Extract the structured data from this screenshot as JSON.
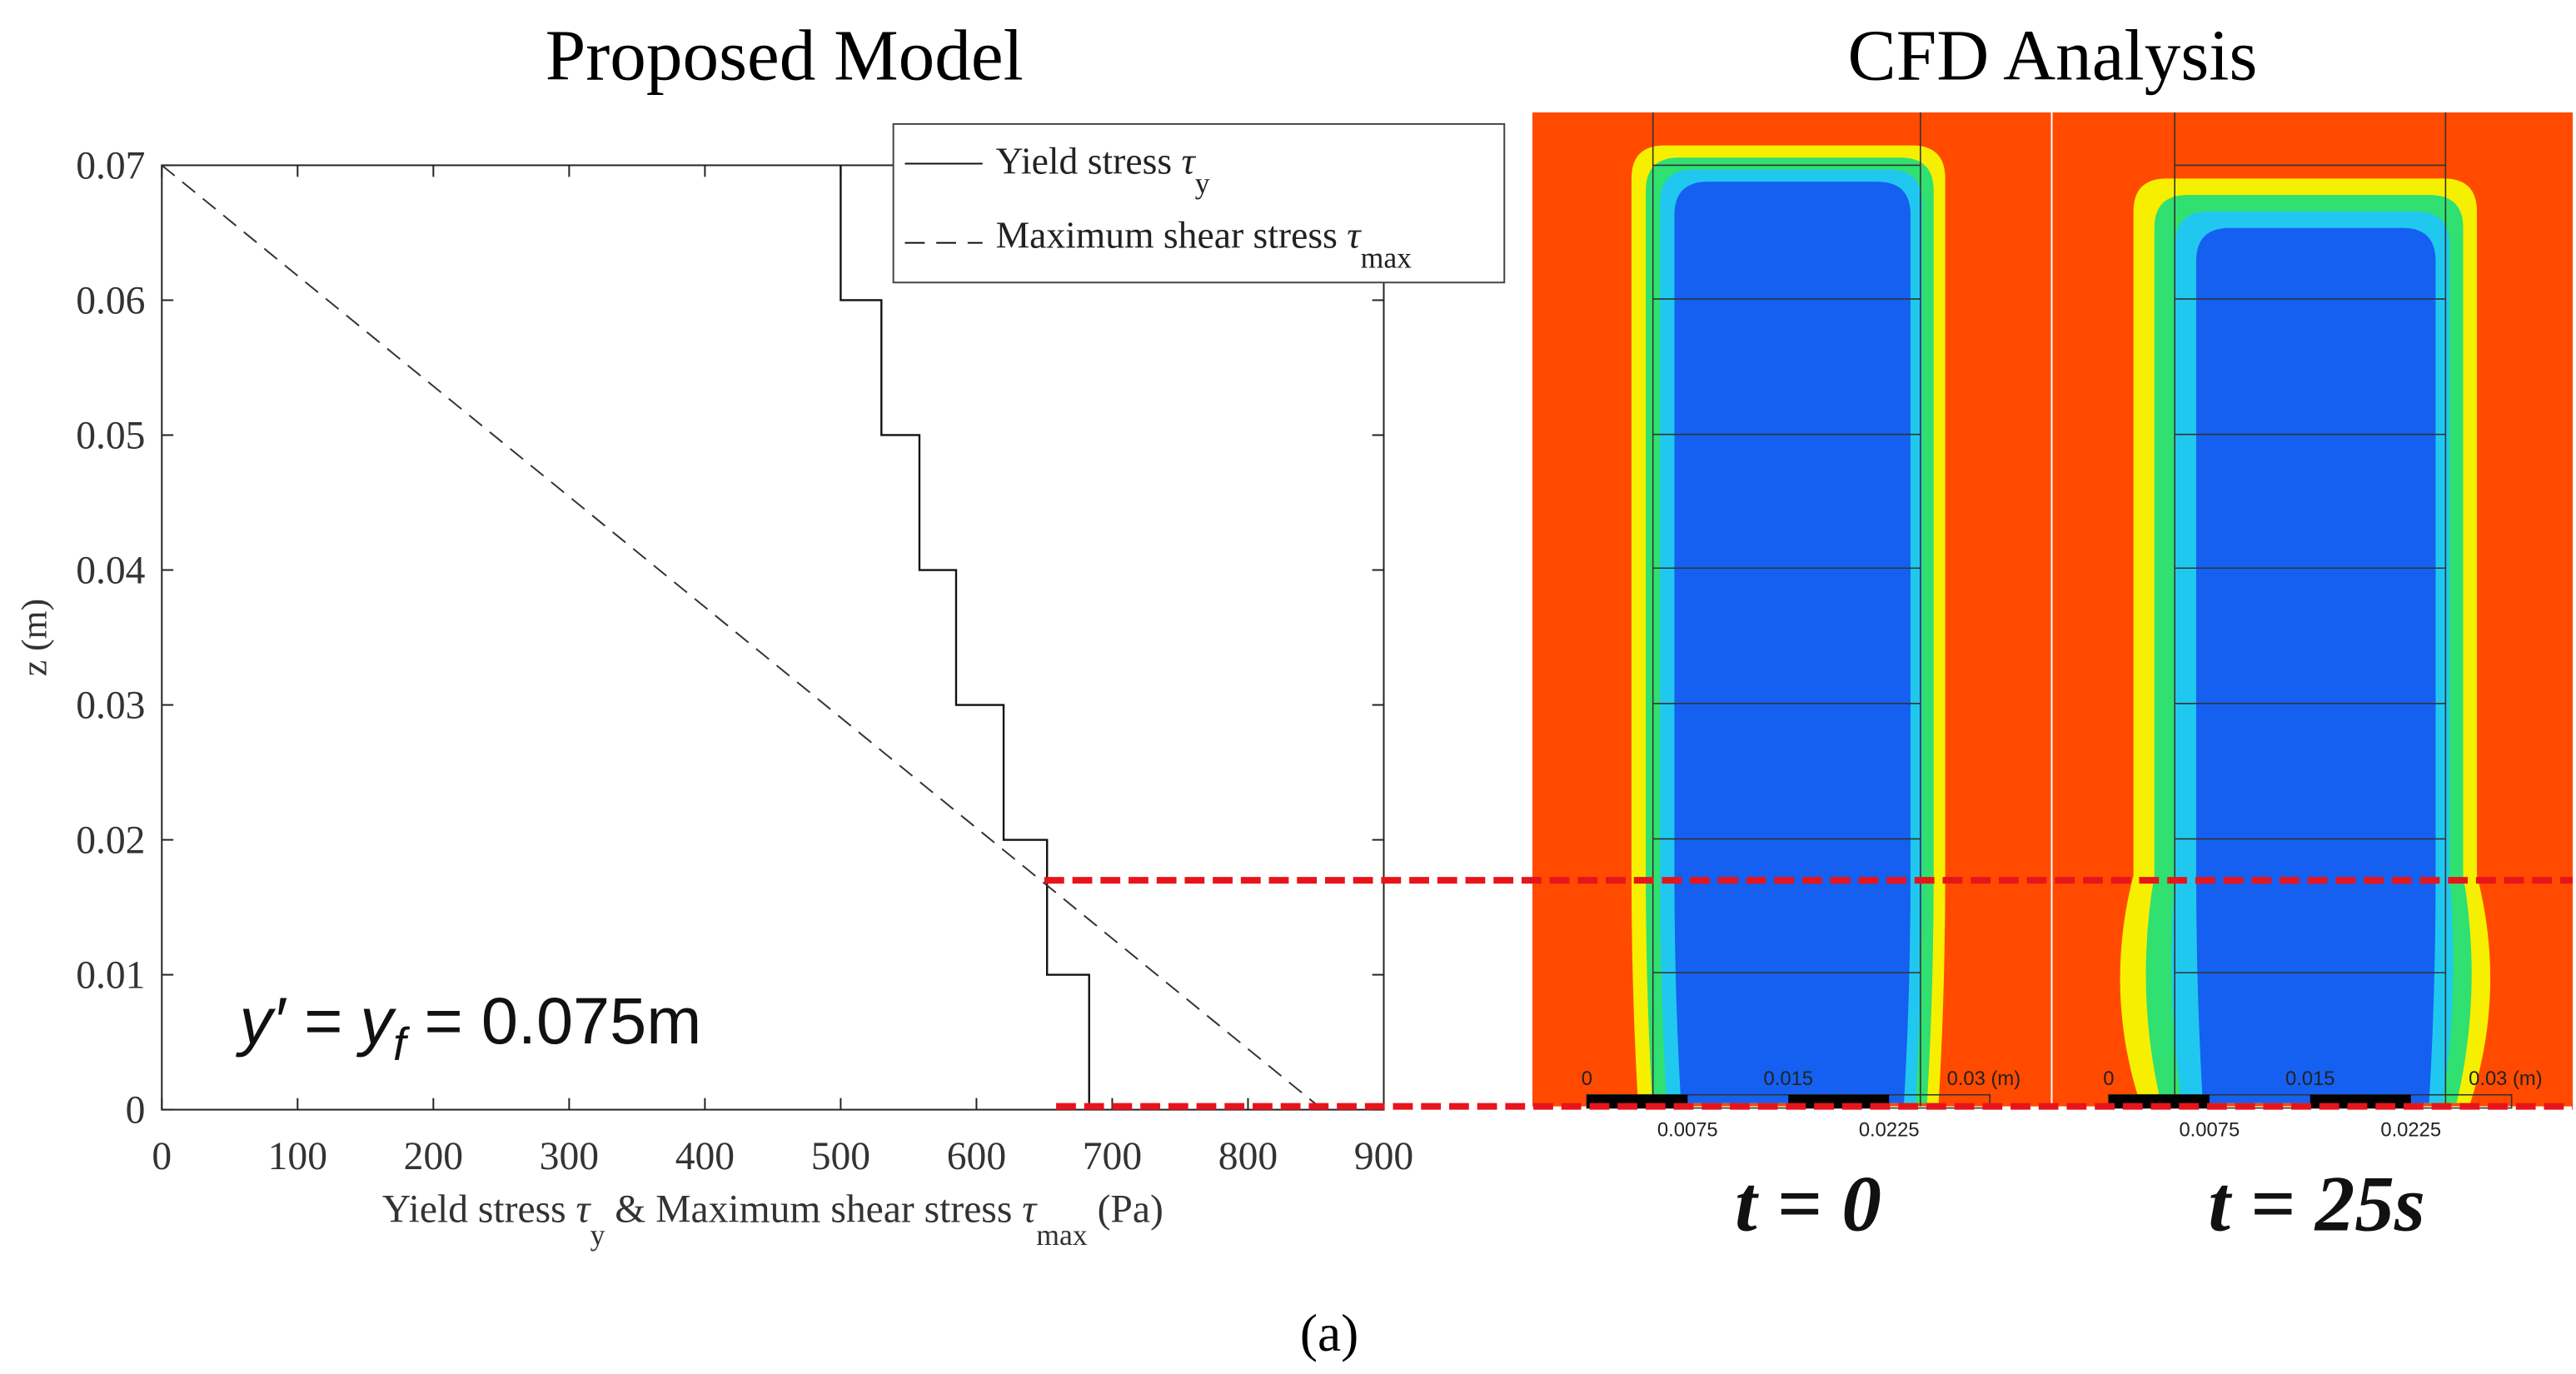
{
  "panel_titles": {
    "left": "Proposed Model",
    "right": "CFD Analysis"
  },
  "caption": "(a)",
  "chart_data": {
    "type": "line",
    "xlabel": {
      "pre": "Yield stress ",
      "tau1": "τ",
      "sub1": "y",
      "mid": " & Maximum shear stress ",
      "tau2": "τ",
      "sub2": "max",
      "post": " (Pa)"
    },
    "ylabel": "z (m)",
    "xlim": [
      0,
      900
    ],
    "ylim": [
      0,
      0.07
    ],
    "xticks": [
      "0",
      "100",
      "200",
      "300",
      "400",
      "500",
      "600",
      "700",
      "800",
      "900"
    ],
    "yticks": [
      "0",
      "0.01",
      "0.02",
      "0.03",
      "0.04",
      "0.05",
      "0.06",
      "0.07"
    ],
    "grid": false,
    "legend_placement": "top-right",
    "series": [
      {
        "name": "Yield stress τy",
        "legend": {
          "text": "Yield stress ",
          "sym": "τ",
          "sub": "y"
        },
        "style": "solid",
        "kind": "step",
        "steps": [
          {
            "z": [
              0.06,
              0.07
            ],
            "value": 500
          },
          {
            "z": [
              0.05,
              0.06
            ],
            "value": 530
          },
          {
            "z": [
              0.04,
              0.05
            ],
            "value": 558
          },
          {
            "z": [
              0.03,
              0.04
            ],
            "value": 585
          },
          {
            "z": [
              0.02,
              0.03
            ],
            "value": 620
          },
          {
            "z": [
              0.01,
              0.02
            ],
            "value": 652
          },
          {
            "z": [
              0,
              0.01
            ],
            "value": 683
          }
        ]
      },
      {
        "name": "Maximum shear stress τmax",
        "legend": {
          "text": "Maximum shear stress ",
          "sym": "τ",
          "sub": "max"
        },
        "style": "dashed",
        "kind": "line",
        "x": [
          0,
          855
        ],
        "y": [
          0.07,
          0
        ]
      }
    ],
    "annotation": {
      "lhs": "y′ = y",
      "sub": "f",
      "rhs": " = 0.075m"
    },
    "reference_lines": {
      "color": "#e8141c",
      "z": [
        0.017,
        0
      ]
    }
  },
  "cfd": {
    "colors": {
      "background": "#ff4a00",
      "core": "#1560f0",
      "yellow": "#f6f000",
      "green": "#30e070",
      "cyan": "#20c8f0"
    },
    "panels": [
      {
        "time_label": "t = 0"
      },
      {
        "time_label": "t = 25s"
      }
    ],
    "scale_bar": {
      "top": [
        "0",
        "0.015",
        "0.03  (m)"
      ],
      "bottom": [
        "0.0075",
        "0.0225"
      ]
    }
  }
}
